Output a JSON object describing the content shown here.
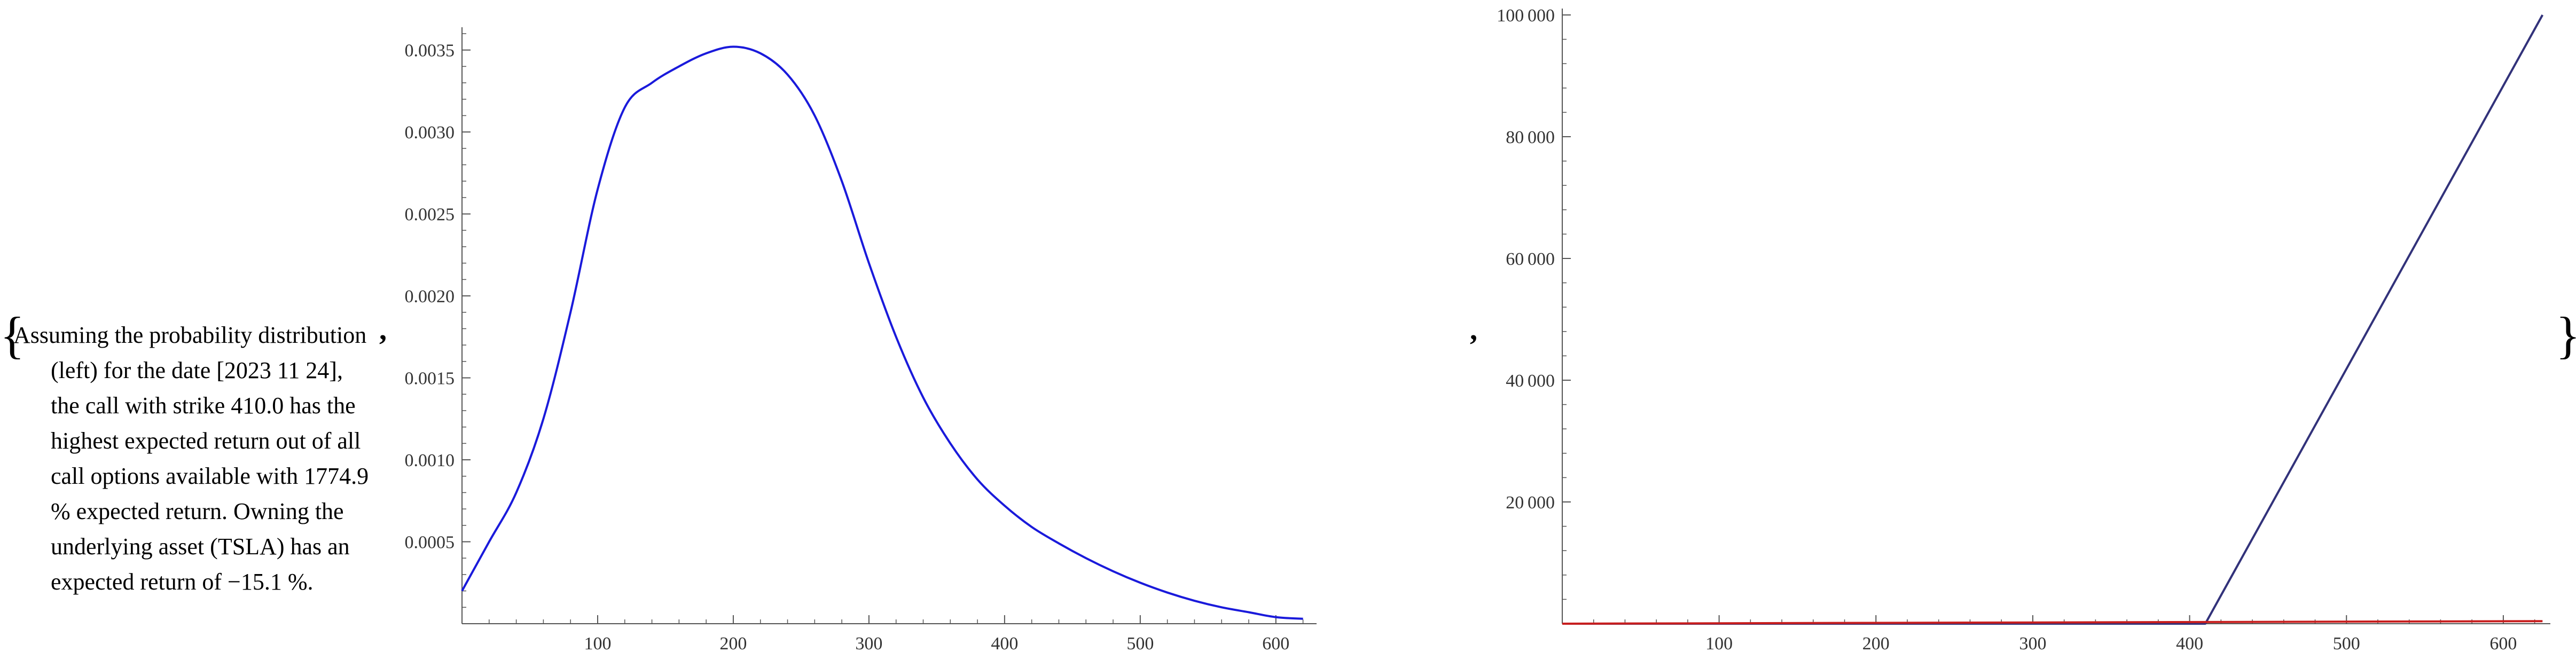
{
  "brackets": {
    "open": "{",
    "close": "}",
    "separator": ","
  },
  "description_lines": [
    "Assuming the probability distribution",
    "(left) for the date [2023 11 24],",
    "the call with strike 410.0 has the",
    "highest expected return out of all",
    "call options available with 1774.9",
    "% expected return. Owning the",
    "underlying asset (TSLA) has an",
    "expected return of −15.1 %."
  ],
  "colors": {
    "density": "#1a1adb",
    "call_payoff": "#32327a",
    "asset": "#c81e1e",
    "axis": "#555555"
  },
  "chart_data": [
    {
      "type": "line",
      "title": "",
      "xlabel": "",
      "ylabel": "",
      "xlim": [
        0,
        630
      ],
      "ylim": [
        0,
        0.0036
      ],
      "x_ticks": [
        100,
        200,
        300,
        400,
        500,
        600
      ],
      "y_ticks": [
        0.0005,
        0.001,
        0.0015,
        0.002,
        0.0025,
        0.003,
        0.0035
      ],
      "y_tick_labels": [
        "0.0005",
        "0.0010",
        "0.0015",
        "0.0020",
        "0.0025",
        "0.0030",
        "0.0035"
      ],
      "grid": false,
      "series": [
        {
          "color": "#1a1adb",
          "x": [
            0,
            20,
            40,
            60,
            80,
            100,
            120,
            140,
            160,
            180,
            200,
            220,
            240,
            260,
            280,
            300,
            320,
            340,
            360,
            380,
            400,
            420,
            440,
            460,
            480,
            500,
            520,
            540,
            560,
            580,
            600,
            620
          ],
          "y": [
            0.0002,
            0.0005,
            0.0008,
            0.00125,
            0.0019,
            0.00265,
            0.00315,
            0.0033,
            0.0034,
            0.00348,
            0.00352,
            0.00348,
            0.00335,
            0.0031,
            0.0027,
            0.0022,
            0.00175,
            0.00138,
            0.0011,
            0.00088,
            0.00072,
            0.00059,
            0.00049,
            0.0004,
            0.00032,
            0.00025,
            0.00019,
            0.00014,
            0.0001,
            7e-05,
            4e-05,
            3e-05
          ]
        }
      ]
    },
    {
      "type": "line",
      "title": "",
      "xlabel": "",
      "ylabel": "",
      "xlim": [
        0,
        630
      ],
      "ylim": [
        0,
        100000
      ],
      "x_ticks": [
        100,
        200,
        300,
        400,
        500,
        600
      ],
      "y_ticks": [
        20000,
        40000,
        60000,
        80000,
        100000
      ],
      "y_tick_labels": [
        "20 000",
        "40 000",
        "60 000",
        "80 000",
        "100 000"
      ],
      "grid": false,
      "series": [
        {
          "color": "#32327a",
          "x": [
            0,
            410,
            625
          ],
          "y": [
            0,
            0,
            100000
          ]
        },
        {
          "color": "#c81e1e",
          "x": [
            0,
            625
          ],
          "y": [
            0,
            420
          ]
        }
      ]
    }
  ]
}
